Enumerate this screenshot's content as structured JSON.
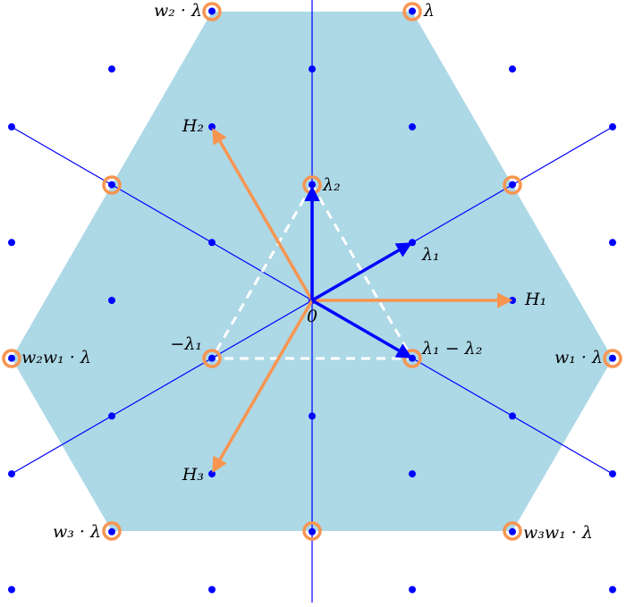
{
  "labels": [
    "w₂ · λ",
    "λ",
    "H₂",
    "λ₂",
    "λ₁",
    "H₁",
    "0",
    "−λ₁",
    "λ₁ − λ₂",
    "w₂w₁ · λ",
    "w₁ · λ",
    "H₃",
    "w₃ · λ",
    "w₃w₁ · λ"
  ]
}
